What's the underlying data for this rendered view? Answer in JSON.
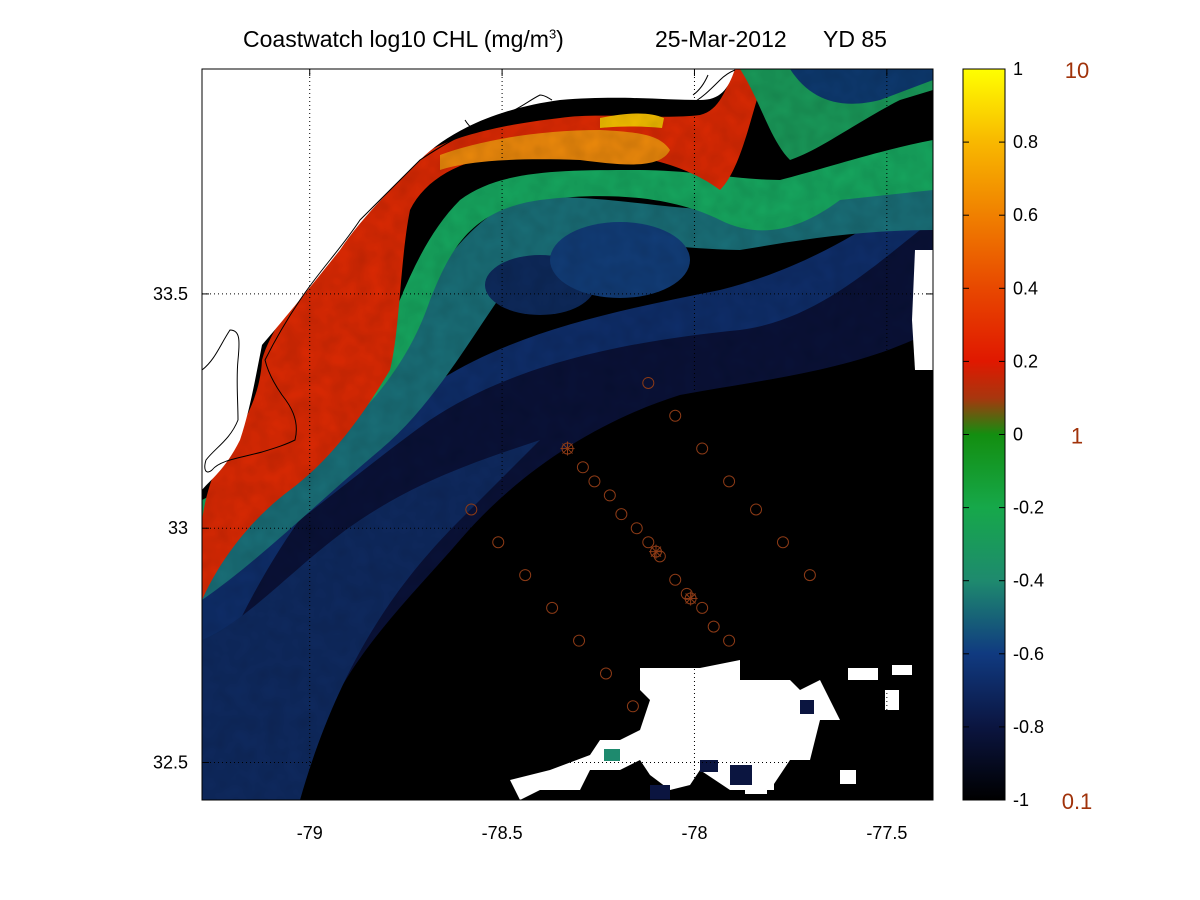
{
  "title": {
    "main": "Coastwatch  log10  CHL (mg/m",
    "superscript": "3",
    "main_close": ")",
    "date": "25-Mar-2012",
    "yd": "YD 85"
  },
  "colors": {
    "land": "#ffffff",
    "coast": "#000000",
    "station": "#8b3a16",
    "cb_right_label": "#a0320a"
  },
  "chart_data": {
    "type": "heatmap",
    "variable": "log10 CHL (mg/m^3)",
    "x_axis": {
      "range": [
        -79.28,
        -77.38
      ],
      "ticks": [
        -79,
        -78.5,
        -78,
        -77.5
      ],
      "tick_labels": [
        "-79",
        "-78.5",
        "-78",
        "-77.5"
      ]
    },
    "y_axis": {
      "range": [
        32.42,
        33.98
      ],
      "ticks": [
        32.5,
        33,
        33.5
      ],
      "tick_labels": [
        "32.5",
        "33",
        "33.5"
      ]
    },
    "grid": "dotted",
    "colorbar": {
      "range": [
        -1,
        1
      ],
      "ticks": [
        -1,
        -0.8,
        -0.6,
        -0.4,
        -0.2,
        0,
        0.2,
        0.4,
        0.6,
        0.8,
        1
      ],
      "tick_labels": [
        "-1",
        "-0.8",
        "-0.6",
        "-0.4",
        "-0.2",
        "0",
        "0.2",
        "0.4",
        "0.6",
        "0.8",
        "1"
      ],
      "right_labels": [
        {
          "value": 1,
          "label": "10"
        },
        {
          "value": 0,
          "label": "1"
        },
        {
          "value": -1,
          "label": "0.1"
        }
      ],
      "stops": [
        {
          "v": -1.0,
          "color": "#000000"
        },
        {
          "v": -0.8,
          "color": "#0b1540"
        },
        {
          "v": -0.6,
          "color": "#103a80"
        },
        {
          "v": -0.4,
          "color": "#1e8a6e"
        },
        {
          "v": -0.2,
          "color": "#16a84a"
        },
        {
          "v": 0.0,
          "color": "#138e10"
        },
        {
          "v": 0.1,
          "color": "#a8360e"
        },
        {
          "v": 0.2,
          "color": "#e01800"
        },
        {
          "v": 0.4,
          "color": "#e84800"
        },
        {
          "v": 0.6,
          "color": "#f08000"
        },
        {
          "v": 0.8,
          "color": "#f8b800"
        },
        {
          "v": 1.0,
          "color": "#ffff00"
        }
      ]
    },
    "stations_circle": [
      [
        -78.12,
        33.31
      ],
      [
        -78.05,
        33.24
      ],
      [
        -77.98,
        33.17
      ],
      [
        -77.91,
        33.1
      ],
      [
        -77.84,
        33.04
      ],
      [
        -77.77,
        32.97
      ],
      [
        -77.7,
        32.9
      ],
      [
        -78.29,
        33.13
      ],
      [
        -78.26,
        33.1
      ],
      [
        -78.22,
        33.07
      ],
      [
        -78.19,
        33.03
      ],
      [
        -78.15,
        33.0
      ],
      [
        -78.12,
        32.97
      ],
      [
        -78.09,
        32.94
      ],
      [
        -78.05,
        32.89
      ],
      [
        -78.02,
        32.86
      ],
      [
        -77.98,
        32.83
      ],
      [
        -77.95,
        32.79
      ],
      [
        -77.91,
        32.76
      ],
      [
        -78.58,
        33.04
      ],
      [
        -78.51,
        32.97
      ],
      [
        -78.44,
        32.9
      ],
      [
        -78.37,
        32.83
      ],
      [
        -78.3,
        32.76
      ],
      [
        -78.23,
        32.69
      ],
      [
        -78.16,
        32.62
      ]
    ],
    "stations_star": [
      [
        -78.33,
        33.17
      ],
      [
        -78.1,
        32.95
      ],
      [
        -78.01,
        32.85
      ]
    ]
  }
}
